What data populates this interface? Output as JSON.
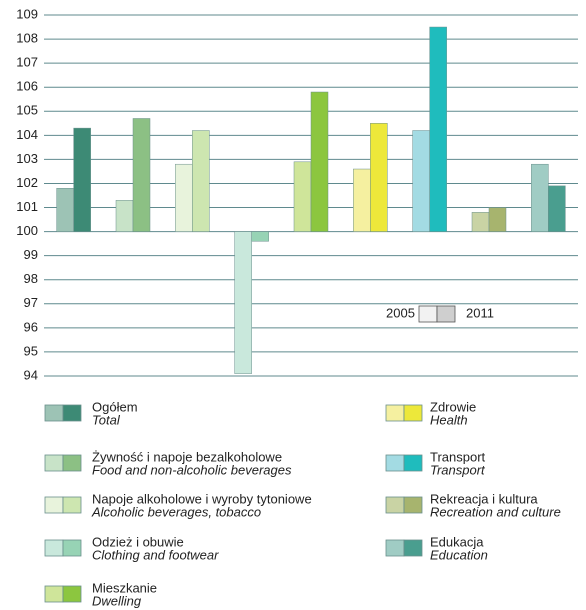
{
  "chart_data": {
    "type": "bar",
    "categories": [
      "Ogółem",
      "Żywność i napoje bezalkoholowe",
      "Napoje alkoholowe i wyroby tytoniowe",
      "Odzież i obuwie",
      "Mieszkanie",
      "Zdrowie",
      "Transport",
      "Rekreacja i kultura",
      "Edukacja"
    ],
    "categories_en": [
      "Total",
      "Food and non-alcoholic beverages",
      "Alcoholic beverages, tobacco",
      "Clothing and footwear",
      "Dwelling",
      "Health",
      "Transport",
      "Recreation and culture",
      "Education"
    ],
    "series": [
      {
        "name": "2005",
        "values": [
          101.8,
          101.3,
          102.8,
          94.1,
          102.9,
          102.6,
          104.2,
          100.8,
          102.8
        ],
        "colors": [
          "#9dc3b5",
          "#c8e3c8",
          "#e8f3dc",
          "#c9e8dc",
          "#cfe59a",
          "#f5f0a0",
          "#a3dbe3",
          "#c9d3a4",
          "#a0ccc4"
        ]
      },
      {
        "name": "2011",
        "values": [
          104.3,
          104.7,
          104.2,
          99.6,
          105.8,
          104.5,
          108.5,
          101.0,
          101.9
        ],
        "colors": [
          "#3d8a75",
          "#8cc084",
          "#cde6b0",
          "#97d3b5",
          "#8cc63f",
          "#ede83a",
          "#1fbcbd",
          "#a7b46e",
          "#4a9e8f"
        ]
      }
    ],
    "baseline": 100,
    "ylim": [
      94,
      109
    ],
    "yticks": [
      94,
      95,
      96,
      97,
      98,
      99,
      100,
      101,
      102,
      103,
      104,
      105,
      106,
      107,
      108,
      109
    ],
    "grid": true
  }
}
